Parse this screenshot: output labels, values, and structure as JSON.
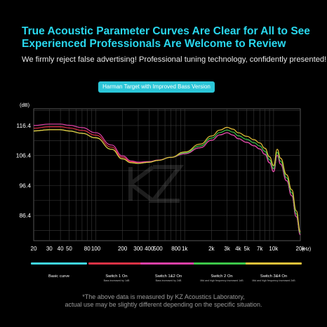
{
  "headline": {
    "line1": "True Acoustic Parameter Curves Are Clear for All to See",
    "line2": "Experienced Professionals Are Welcome to Review"
  },
  "subtitle": "We firmly reject false advertising! Professional tuning technology, confidently presented!",
  "badge": "Harman Target with Improved Bass Version",
  "colors": {
    "headline": "#29d8ee",
    "basic": "#3fd6e8",
    "switch1": "#e03246",
    "switch12": "#e040a8",
    "switch2": "#3cc84a",
    "switch34": "#e8c23a",
    "grid": "#3a3a3a"
  },
  "legend": [
    {
      "name": "Basic curve",
      "note": "",
      "color": "#3fd6e8"
    },
    {
      "name": "Switch 1 On",
      "note": "Bass increased by 1dB",
      "color": "#e03246"
    },
    {
      "name": "Switch 1&2 On",
      "note": "Bass increased by 2dB",
      "color": "#e040a8"
    },
    {
      "name": "Switch 2 On",
      "note": "Mid and high frequency increased 1dB",
      "color": "#3cc84a"
    },
    {
      "name": "Switch 3&4 On",
      "note": "Mid and high frequency increased 2dB",
      "color": "#e8c23a"
    }
  ],
  "footnote": {
    "line1": "*The above data is measured by KZ Acoustics Laboratory,",
    "line2": "actual use may be slightly different depending on the specific situation."
  },
  "chart_data": {
    "type": "line",
    "xscale": "log",
    "xlim": [
      20,
      20000
    ],
    "ylim": [
      78,
      122
    ],
    "ylabel": "(dB)",
    "xlabel": "(Hz)",
    "yticks": [
      "116.4",
      "106.4",
      "96.4",
      "86.4"
    ],
    "ytick_values": [
      116.4,
      106.4,
      96.4,
      86.4
    ],
    "xticks": [
      "20",
      "30",
      "40",
      "50",
      "80",
      "100",
      "200",
      "300",
      "400",
      "500",
      "800",
      "1k",
      "2k",
      "3k",
      "4k",
      "5k",
      "7k",
      "10k",
      "20k"
    ],
    "xtick_values": [
      20,
      30,
      40,
      50,
      80,
      100,
      200,
      300,
      400,
      500,
      800,
      1000,
      2000,
      3000,
      4000,
      5000,
      7000,
      10000,
      20000
    ],
    "x": [
      20,
      30,
      40,
      50,
      70,
      100,
      150,
      200,
      250,
      300,
      400,
      500,
      700,
      1000,
      1500,
      2000,
      2500,
      3000,
      3500,
      4000,
      5000,
      6000,
      7000,
      8000,
      9000,
      10000,
      11000,
      12000,
      14000,
      16000,
      18000,
      20000
    ],
    "series": [
      {
        "name": "Basic curve",
        "values": [
          114.6,
          115.0,
          115.0,
          114.6,
          113.8,
          112.3,
          108.5,
          105.3,
          104.0,
          103.8,
          104.2,
          104.8,
          105.8,
          107.0,
          109.0,
          111.5,
          113.3,
          114.0,
          113.2,
          112.0,
          110.8,
          109.7,
          108.6,
          106.8,
          104.0,
          101.0,
          106.5,
          103.5,
          98.0,
          93.0,
          86.0,
          80.0
        ]
      },
      {
        "name": "Switch 1 On",
        "values": [
          115.5,
          116.0,
          116.0,
          115.6,
          114.8,
          113.2,
          109.2,
          105.8,
          104.3,
          104.0,
          104.3,
          104.8,
          105.8,
          107.0,
          109.0,
          111.5,
          113.3,
          114.0,
          113.2,
          112.0,
          110.8,
          109.7,
          108.6,
          106.8,
          104.0,
          101.0,
          106.5,
          103.5,
          98.0,
          93.0,
          86.0,
          80.0
        ]
      },
      {
        "name": "Switch 1&2 On",
        "values": [
          116.4,
          116.9,
          116.9,
          116.5,
          115.7,
          114.0,
          109.9,
          106.3,
          104.6,
          104.2,
          104.4,
          104.9,
          105.8,
          107.0,
          109.0,
          111.5,
          113.3,
          114.0,
          113.2,
          112.0,
          110.8,
          109.7,
          108.6,
          106.8,
          104.0,
          101.0,
          106.5,
          103.5,
          98.0,
          93.0,
          86.0,
          80.0
        ]
      },
      {
        "name": "Switch 2 On",
        "values": [
          114.6,
          115.0,
          115.0,
          114.6,
          113.8,
          112.3,
          108.5,
          105.3,
          104.0,
          103.8,
          104.2,
          104.8,
          105.8,
          107.3,
          109.6,
          112.2,
          114.1,
          114.9,
          114.2,
          113.0,
          111.8,
          110.7,
          109.6,
          107.8,
          105.0,
          102.0,
          107.5,
          104.5,
          99.0,
          94.0,
          87.0,
          80.5
        ]
      },
      {
        "name": "Switch 3&4 On",
        "values": [
          114.6,
          115.0,
          115.0,
          114.6,
          113.8,
          112.3,
          108.5,
          105.3,
          104.0,
          103.8,
          104.2,
          104.8,
          105.8,
          107.6,
          110.2,
          112.9,
          114.9,
          115.8,
          115.2,
          114.0,
          112.8,
          111.7,
          110.6,
          108.8,
          106.0,
          103.0,
          108.5,
          105.5,
          100.0,
          95.0,
          88.0,
          81.0
        ]
      }
    ]
  }
}
